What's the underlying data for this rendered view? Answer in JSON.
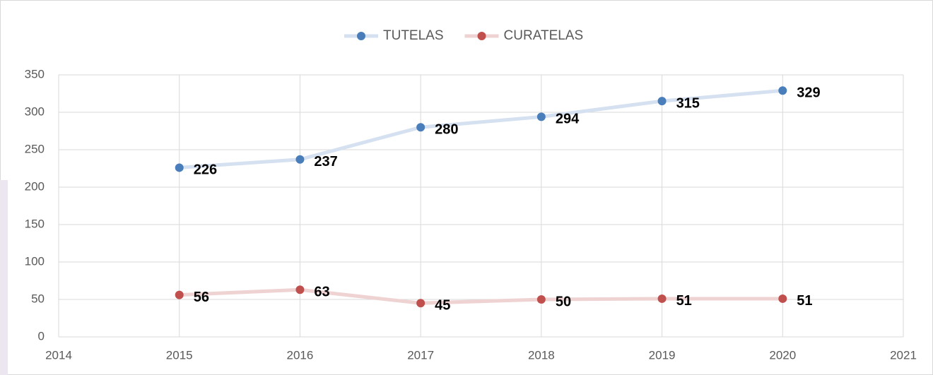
{
  "chart_data": {
    "type": "line",
    "x": [
      2015,
      2016,
      2017,
      2018,
      2019,
      2020
    ],
    "series": [
      {
        "name": "TUTELAS",
        "color": "#4a7ebb",
        "line_color": "#d5e1f0",
        "values": [
          226,
          237,
          280,
          294,
          315,
          329
        ]
      },
      {
        "name": "CURATELAS",
        "color": "#c0504d",
        "line_color": "#efd3d3",
        "values": [
          56,
          63,
          45,
          50,
          51,
          51
        ]
      }
    ],
    "xlim": [
      2014,
      2021
    ],
    "xticks": [
      2014,
      2015,
      2016,
      2017,
      2018,
      2019,
      2020,
      2021
    ],
    "ylim": [
      0,
      350
    ],
    "yticks": [
      0,
      50,
      100,
      150,
      200,
      250,
      300,
      350
    ],
    "grid": true,
    "legend": "top"
  }
}
